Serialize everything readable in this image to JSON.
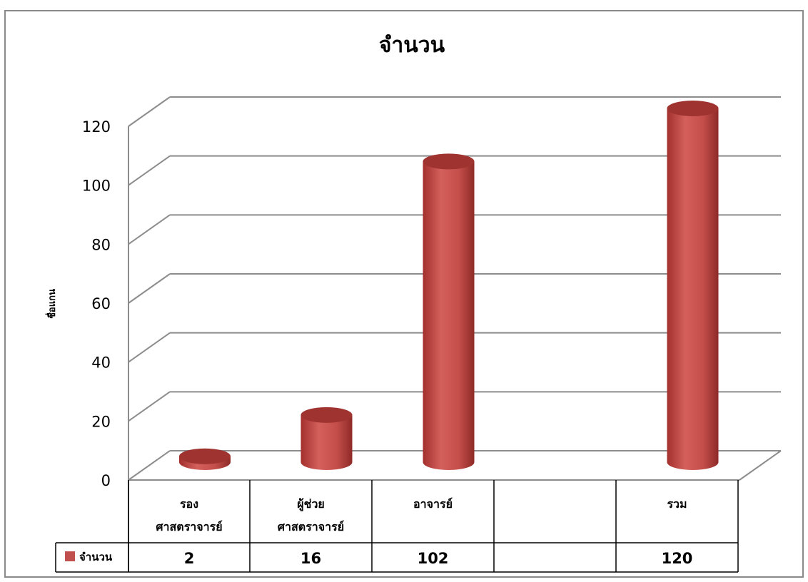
{
  "chart_data": {
    "type": "bar",
    "style": "3d-cylinder",
    "title": "จำนวน",
    "ylabel": "ชื่อแกน",
    "xlabel": "",
    "ylim": [
      0,
      120
    ],
    "yticks": [
      0,
      20,
      40,
      60,
      80,
      100,
      120
    ],
    "grid": true,
    "legend_placement": "data-table",
    "categories": [
      [
        "รอง",
        "ศาสตราจารย์"
      ],
      [
        "ผู้ช่วย",
        "ศาสตราจารย์"
      ],
      [
        "อาจารย์"
      ],
      [
        ""
      ],
      [
        "รวม"
      ]
    ],
    "series": [
      {
        "name": "จำนวน",
        "color": "#c0504d",
        "values": [
          2,
          16,
          102,
          null,
          120
        ],
        "labels": [
          "2",
          "16",
          "102",
          "",
          "120"
        ]
      }
    ]
  }
}
